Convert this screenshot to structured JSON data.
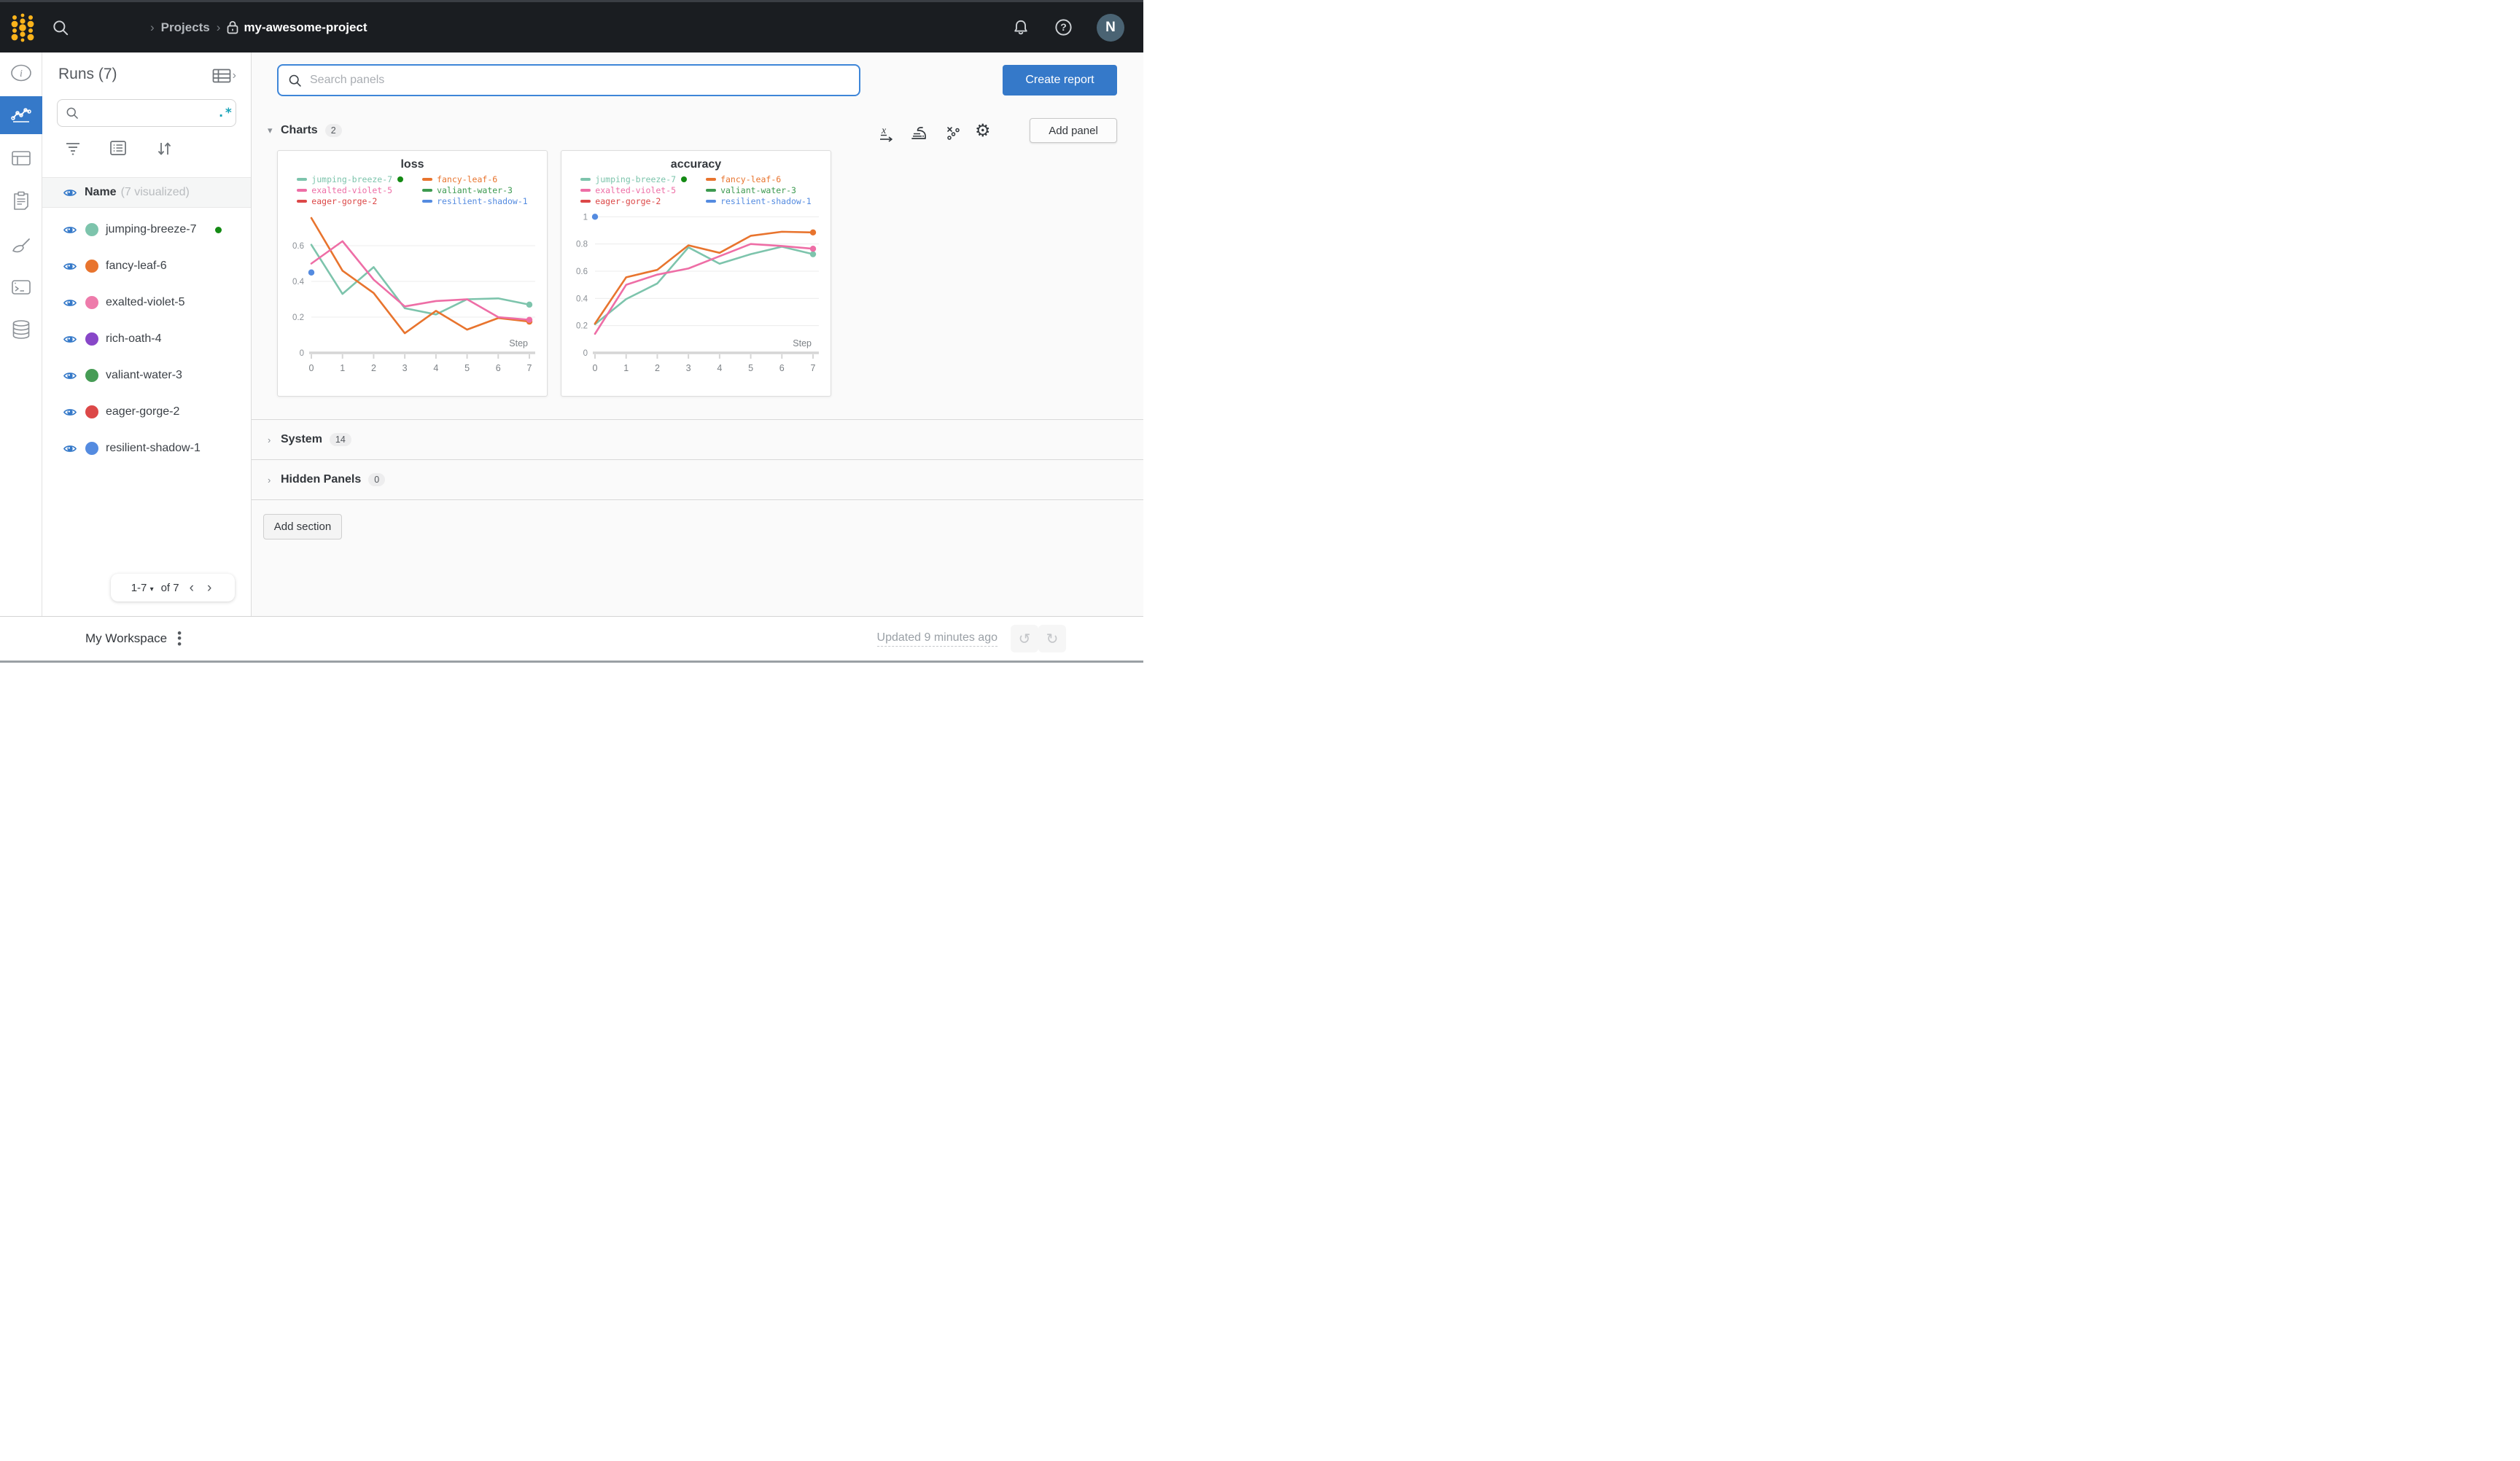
{
  "topbar": {
    "breadcrumb": {
      "chevron": "›",
      "projects": "Projects",
      "project": "my-awesome-project"
    },
    "avatar_initial": "N"
  },
  "left_rail": {
    "items": [
      "overview",
      "workspace",
      "table",
      "jobs",
      "sweeps",
      "logs",
      "artifacts"
    ],
    "active": "workspace"
  },
  "runs_panel": {
    "title": "Runs (7)",
    "search_placeholder": "",
    "regex_toggle": ".*",
    "header": {
      "name": "Name",
      "visualized": "(7 visualized)"
    },
    "runs": [
      {
        "name": "jumping-breeze-7",
        "color": "#7dc4ac",
        "active": true
      },
      {
        "name": "fancy-leaf-6",
        "color": "#e8742e",
        "active": false
      },
      {
        "name": "exalted-violet-5",
        "color": "#ee7bab",
        "active": false
      },
      {
        "name": "rich-oath-4",
        "color": "#8847c8",
        "active": false
      },
      {
        "name": "valiant-water-3",
        "color": "#469c55",
        "active": false
      },
      {
        "name": "eager-gorge-2",
        "color": "#dc4848",
        "active": false
      },
      {
        "name": "resilient-shadow-1",
        "color": "#548be0",
        "active": false
      }
    ],
    "active_dot_color": "#148a14",
    "pagination": {
      "range": "1-7",
      "of": "of 7",
      "prev": "‹",
      "next": "›"
    }
  },
  "toolbar": {
    "search_placeholder": "Search panels",
    "create_report_label": "Create report"
  },
  "sections": {
    "charts": {
      "label": "Charts",
      "count": "2",
      "add_panel_label": "Add panel"
    },
    "system": {
      "label": "System",
      "count": "14"
    },
    "hidden": {
      "label": "Hidden Panels",
      "count": "0"
    },
    "add_section_label": "Add section"
  },
  "workspace_bar": {
    "title": "My Workspace",
    "updated": "Updated 9 minutes ago"
  },
  "colors": {
    "accent": "#3579c9",
    "topbar_bg": "#1a1d21",
    "logo_gold": "#fcb41b",
    "regex_teal": "#17a3b8"
  },
  "chart_data": [
    {
      "type": "line",
      "title": "loss",
      "xlabel": "Step",
      "x": [
        0,
        1,
        2,
        3,
        4,
        5,
        6,
        7
      ],
      "xticks": [
        0,
        1,
        2,
        3,
        4,
        5,
        6,
        7
      ],
      "ylim": [
        0,
        0.8
      ],
      "yticks": [
        0,
        0.2,
        0.4,
        0.6
      ],
      "grid": true,
      "legend_position": "top",
      "series": [
        {
          "name": "jumping-breeze-7",
          "color": "#7dc4ac",
          "active_dot": true,
          "end_dot": true,
          "values": [
            0.605,
            0.33,
            0.48,
            0.25,
            0.215,
            0.3,
            0.305,
            0.27
          ]
        },
        {
          "name": "fancy-leaf-6",
          "color": "#e8742e",
          "end_dot": true,
          "values": [
            0.755,
            0.46,
            0.335,
            0.11,
            0.235,
            0.13,
            0.195,
            0.175
          ]
        },
        {
          "name": "exalted-violet-5",
          "color": "#ee6ea6",
          "end_dot": true,
          "values": [
            0.5,
            0.625,
            0.41,
            0.26,
            0.29,
            0.3,
            0.2,
            0.185
          ]
        },
        {
          "name": "valiant-water-3",
          "color": "#3d9a50",
          "values": []
        },
        {
          "name": "eager-gorge-2",
          "color": "#dc4848",
          "values": []
        },
        {
          "name": "resilient-shadow-1",
          "color": "#548be0",
          "end_dot": true,
          "values": [
            0.45,
            null,
            null,
            null,
            null,
            null,
            null,
            null
          ]
        }
      ]
    },
    {
      "type": "line",
      "title": "accuracy",
      "xlabel": "Step",
      "x": [
        0,
        1,
        2,
        3,
        4,
        5,
        6,
        7
      ],
      "xticks": [
        0,
        1,
        2,
        3,
        4,
        5,
        6,
        7
      ],
      "ylim": [
        0,
        1.05
      ],
      "yticks": [
        0,
        0.2,
        0.4,
        0.6,
        0.8,
        1
      ],
      "grid": true,
      "legend_position": "top",
      "series": [
        {
          "name": "jumping-breeze-7",
          "color": "#7dc4ac",
          "active_dot": true,
          "end_dot": true,
          "values": [
            0.21,
            0.395,
            0.51,
            0.775,
            0.655,
            0.725,
            0.78,
            0.725
          ]
        },
        {
          "name": "fancy-leaf-6",
          "color": "#e8742e",
          "end_dot": true,
          "values": [
            0.215,
            0.555,
            0.61,
            0.79,
            0.735,
            0.86,
            0.89,
            0.885
          ]
        },
        {
          "name": "exalted-violet-5",
          "color": "#ee6ea6",
          "end_dot": true,
          "values": [
            0.14,
            0.5,
            0.575,
            0.62,
            0.71,
            0.8,
            0.785,
            0.765
          ]
        },
        {
          "name": "valiant-water-3",
          "color": "#3d9a50",
          "values": []
        },
        {
          "name": "eager-gorge-2",
          "color": "#dc4848",
          "values": []
        },
        {
          "name": "resilient-shadow-1",
          "color": "#548be0",
          "end_dot": true,
          "values": [
            1.0,
            null,
            null,
            null,
            null,
            null,
            null,
            null
          ]
        }
      ]
    }
  ]
}
